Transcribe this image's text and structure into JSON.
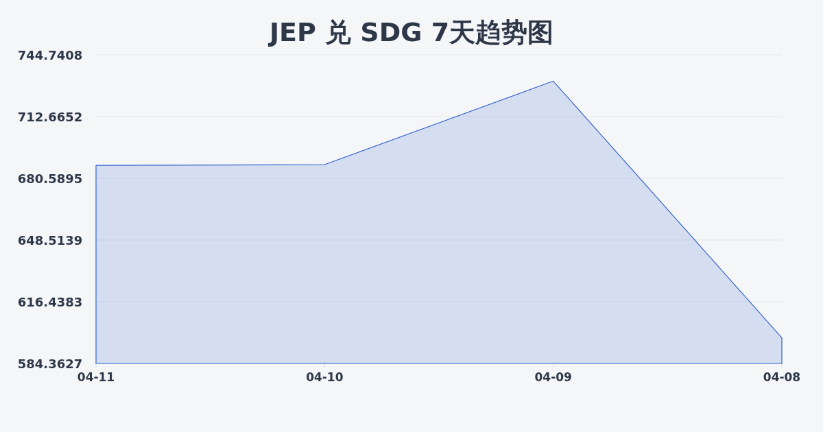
{
  "chart_data": {
    "type": "area",
    "title": "JEP 兑 SDG 7天趋势图",
    "categories": [
      "04-11",
      "04-10",
      "04-09",
      "04-08"
    ],
    "series": [
      {
        "color": "#3564cc",
        "values": [
          687.3,
          687.7,
          731.1,
          597.7
        ]
      }
    ],
    "ylim": [
      584.3627,
      744.7408
    ],
    "yticks": [
      584.3627,
      616.4383,
      648.5139,
      680.5895,
      712.6652,
      744.7408
    ],
    "grid": "y"
  }
}
